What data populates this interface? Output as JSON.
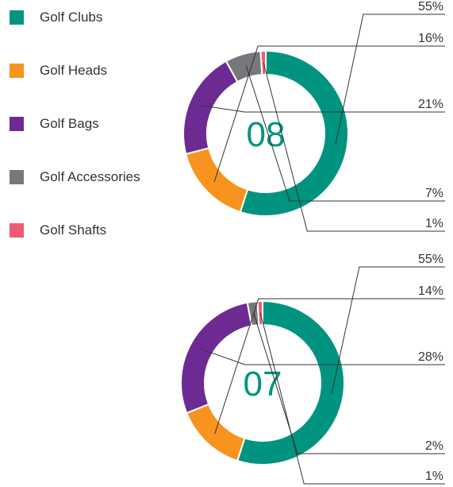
{
  "legend": {
    "items": [
      {
        "label": "Golf Clubs",
        "color": "#009480"
      },
      {
        "label": "Golf Heads",
        "color": "#F7931E"
      },
      {
        "label": "Golf Bags",
        "color": "#6E2A93"
      },
      {
        "label": "Golf Accessories",
        "color": "#77787B"
      },
      {
        "label": "Golf Shafts",
        "color": "#EF5B72"
      }
    ]
  },
  "chart_data": [
    {
      "type": "pie",
      "center_label": "08",
      "categories": [
        "Golf Clubs",
        "Golf Heads",
        "Golf Bags",
        "Golf Accessories",
        "Golf Shafts"
      ],
      "values": [
        55,
        16,
        21,
        7,
        1
      ],
      "value_labels": [
        "55%",
        "16%",
        "21%",
        "7%",
        "1%"
      ]
    },
    {
      "type": "pie",
      "center_label": "07",
      "categories": [
        "Golf Clubs",
        "Golf Heads",
        "Golf Bags",
        "Golf Accessories",
        "Golf Shafts"
      ],
      "values": [
        55,
        14,
        28,
        2,
        1
      ],
      "value_labels": [
        "55%",
        "14%",
        "28%",
        "2%",
        "1%"
      ]
    }
  ]
}
